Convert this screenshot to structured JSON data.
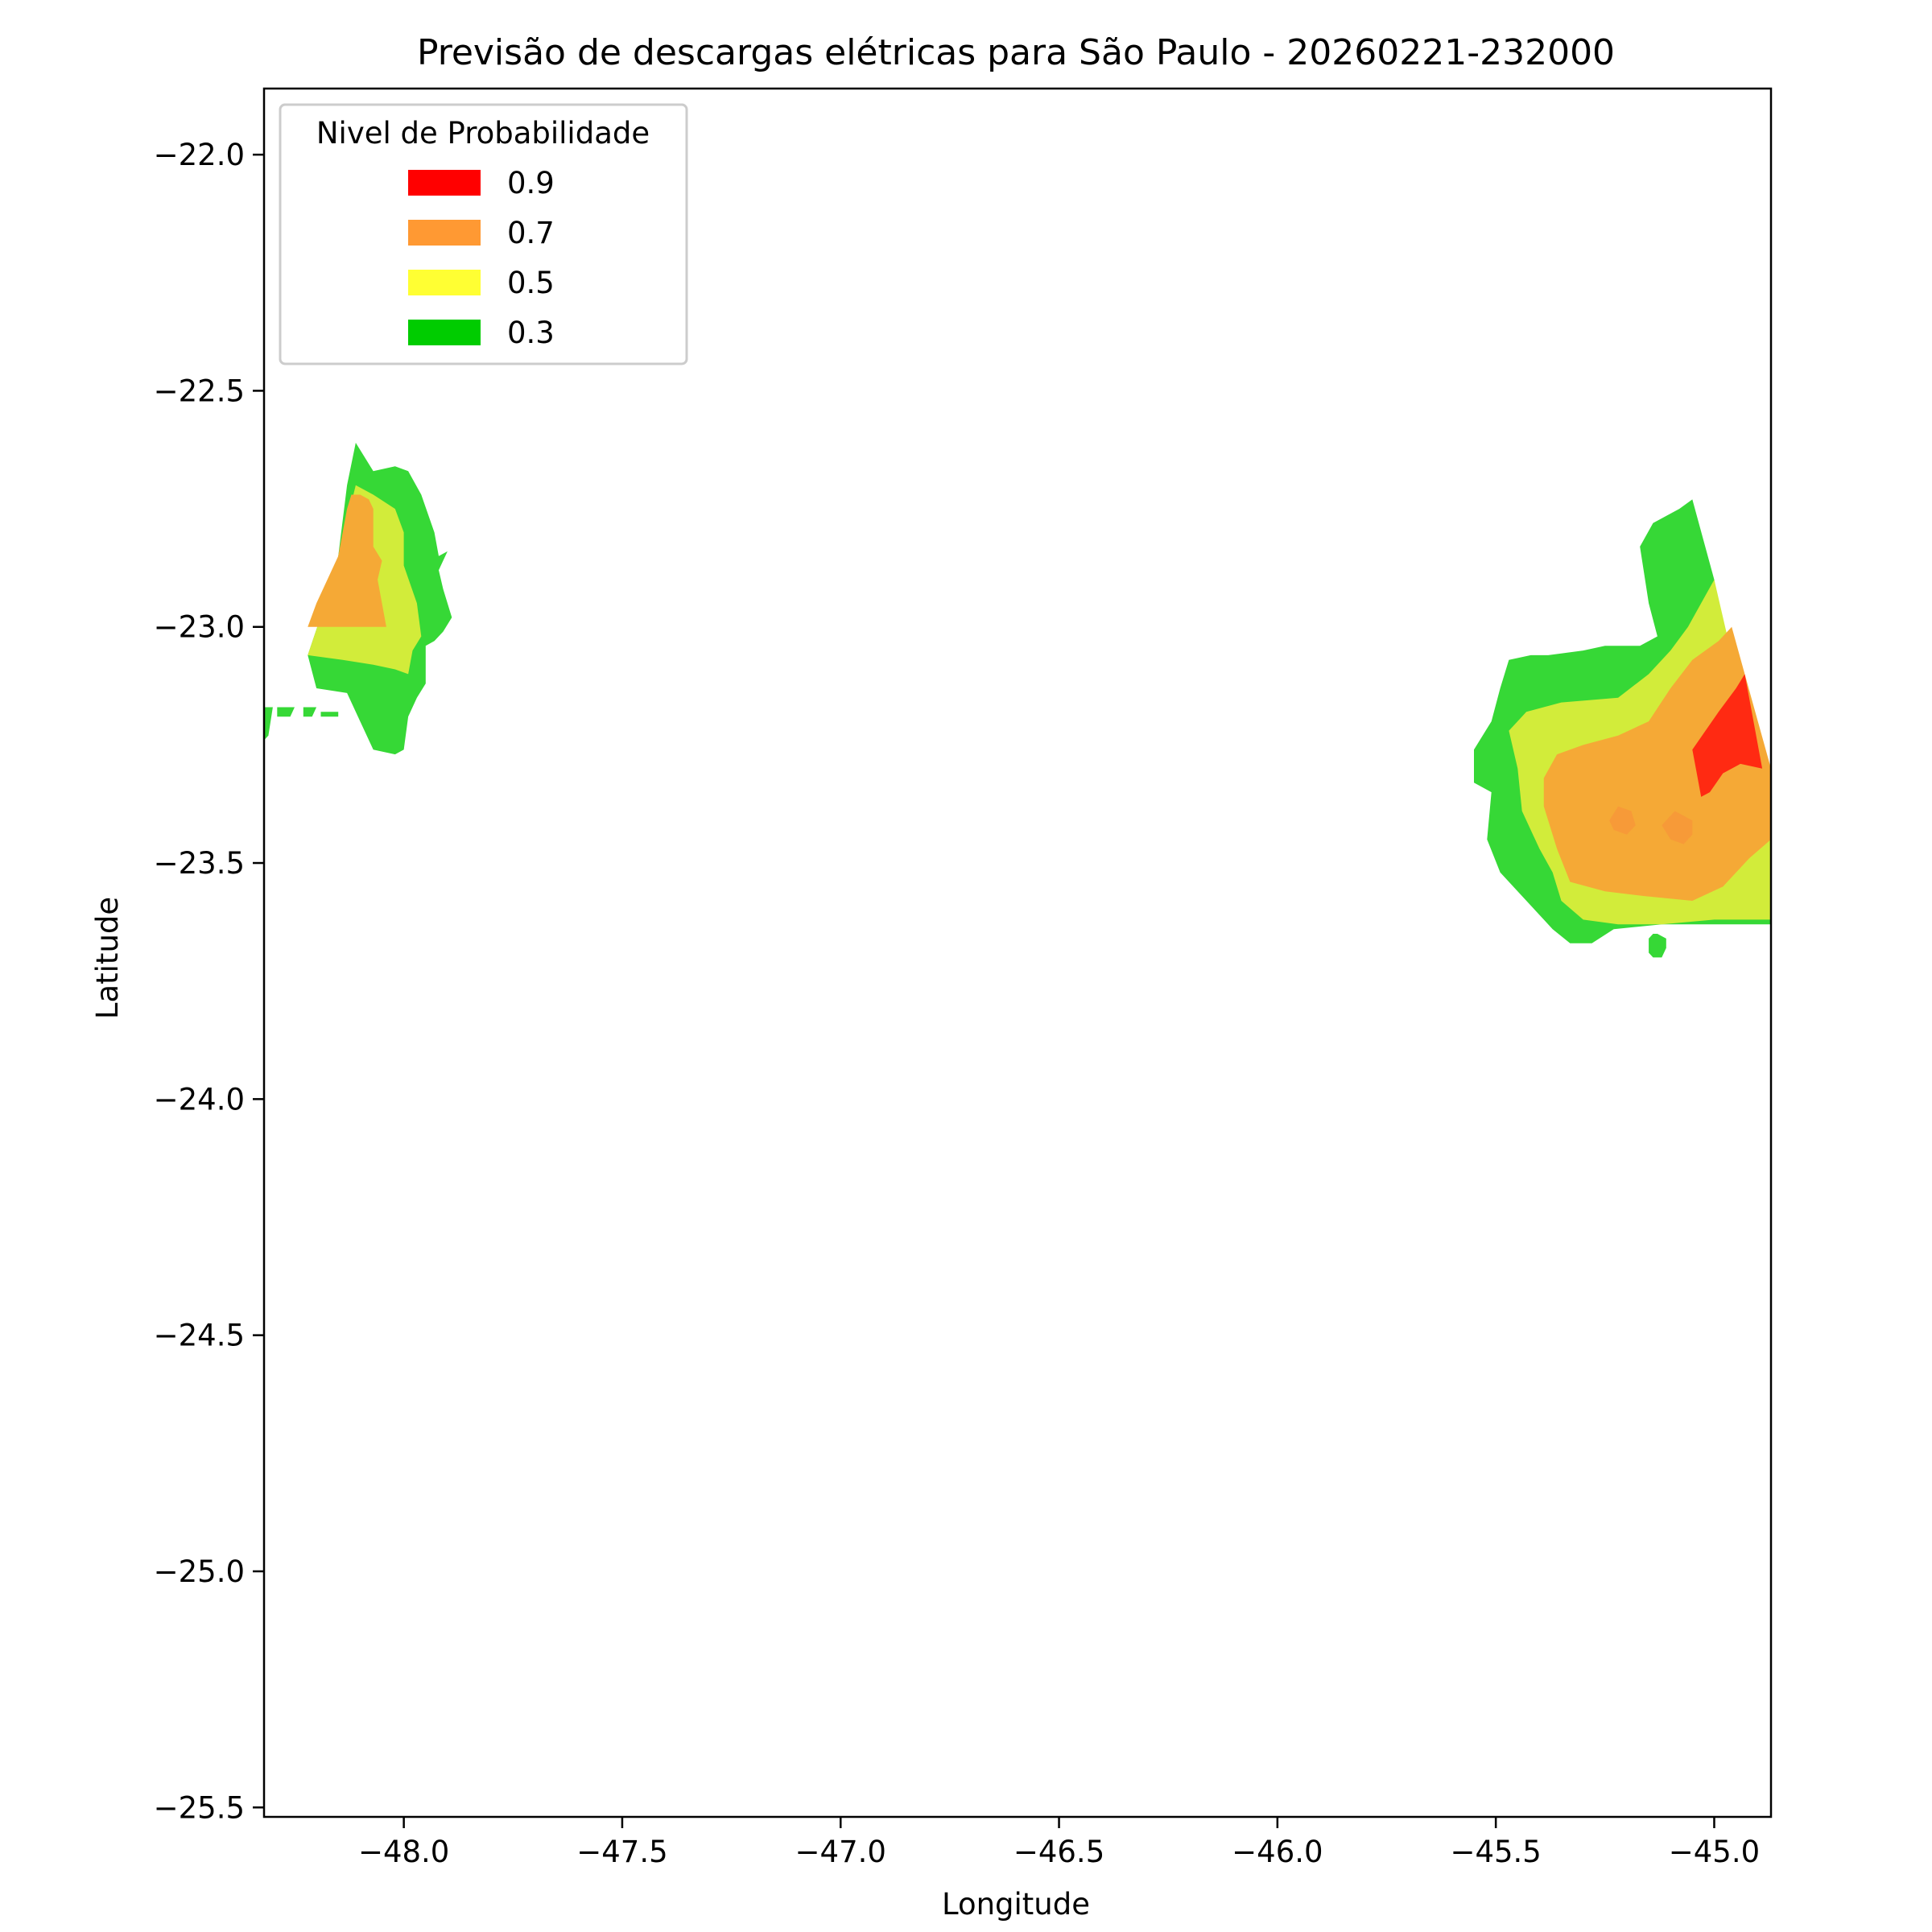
{
  "chart_data": {
    "type": "heatmap",
    "title": "Previsão de descargas elétricas para São Paulo - 20260221-232000",
    "xlabel": "Longitude",
    "ylabel": "Latitude",
    "xlim": [
      -48.32,
      -44.87
    ],
    "ylim": [
      -25.52,
      -21.86
    ],
    "x_ticks": [
      -48.0,
      -47.5,
      -47.0,
      -46.5,
      -46.0,
      -45.5,
      -45.0
    ],
    "x_tick_labels": [
      "−48.0",
      "−47.5",
      "−47.0",
      "−46.5",
      "−46.0",
      "−45.5",
      "−45.0"
    ],
    "y_ticks": [
      -22.0,
      -22.5,
      -23.0,
      -23.5,
      -24.0,
      -24.5,
      -25.0,
      -25.5
    ],
    "y_tick_labels": [
      "−22.0",
      "−22.5",
      "−23.0",
      "−23.5",
      "−24.0",
      "−24.5",
      "−25.0",
      "−25.5"
    ],
    "grid": false,
    "legend": {
      "title": "Nivel de Probabilidade",
      "placement": "top-left",
      "entries": [
        {
          "label": "0.9",
          "color": "#ff0000"
        },
        {
          "label": "0.7",
          "color": "#ff9933"
        },
        {
          "label": "0.5",
          "color": "#ffff33"
        },
        {
          "label": "0.3",
          "color": "#00cc00"
        }
      ]
    },
    "level_colors": {
      "0.3": "#36d836",
      "0.5": "#d2ec3a",
      "0.7": "#f5a936",
      "0.9": "#ff2a12",
      "0.7-spot": "#f79a38"
    },
    "regions": [
      {
        "level": "0.3",
        "polygon": [
          [
            -48.11,
            -22.61
          ],
          [
            -48.07,
            -22.67
          ],
          [
            -48.02,
            -22.66
          ],
          [
            -47.99,
            -22.67
          ],
          [
            -47.96,
            -22.72
          ],
          [
            -47.93,
            -22.8
          ],
          [
            -47.92,
            -22.85
          ],
          [
            -47.9,
            -22.84
          ],
          [
            -47.92,
            -22.88
          ],
          [
            -47.91,
            -22.92
          ],
          [
            -47.89,
            -22.98
          ],
          [
            -47.91,
            -23.01
          ],
          [
            -47.93,
            -23.03
          ],
          [
            -47.95,
            -23.04
          ],
          [
            -47.95,
            -23.12
          ],
          [
            -47.97,
            -23.15
          ],
          [
            -47.99,
            -23.19
          ],
          [
            -48.0,
            -23.26
          ],
          [
            -48.02,
            -23.27
          ],
          [
            -48.07,
            -23.26
          ],
          [
            -48.1,
            -23.2
          ],
          [
            -48.13,
            -23.14
          ],
          [
            -48.2,
            -23.13
          ],
          [
            -48.22,
            -23.06
          ],
          [
            -48.18,
            -22.95
          ],
          [
            -48.15,
            -22.85
          ],
          [
            -48.13,
            -22.7
          ]
        ]
      },
      {
        "level": "0.3",
        "polygon": [
          [
            -48.32,
            -23.17
          ],
          [
            -48.3,
            -23.17
          ],
          [
            -48.31,
            -23.23
          ],
          [
            -48.32,
            -23.24
          ]
        ]
      },
      {
        "level": "0.3",
        "polygon": [
          [
            -48.29,
            -23.17
          ],
          [
            -48.25,
            -23.17
          ],
          [
            -48.26,
            -23.19
          ],
          [
            -48.29,
            -23.19
          ]
        ]
      },
      {
        "level": "0.3",
        "polygon": [
          [
            -48.23,
            -23.17
          ],
          [
            -48.2,
            -23.17
          ],
          [
            -48.21,
            -23.19
          ],
          [
            -48.23,
            -23.19
          ]
        ]
      },
      {
        "level": "0.3",
        "polygon": [
          [
            -48.19,
            -23.18
          ],
          [
            -48.15,
            -23.18
          ],
          [
            -48.15,
            -23.19
          ],
          [
            -48.19,
            -23.19
          ]
        ]
      },
      {
        "level": "0.5",
        "polygon": [
          [
            -48.11,
            -22.7
          ],
          [
            -48.07,
            -22.72
          ],
          [
            -48.02,
            -22.75
          ],
          [
            -48.0,
            -22.8
          ],
          [
            -48.0,
            -22.87
          ],
          [
            -47.97,
            -22.95
          ],
          [
            -47.96,
            -23.02
          ],
          [
            -47.98,
            -23.05
          ],
          [
            -47.99,
            -23.1
          ],
          [
            -48.02,
            -23.09
          ],
          [
            -48.07,
            -23.08
          ],
          [
            -48.14,
            -23.07
          ],
          [
            -48.22,
            -23.06
          ],
          [
            -48.18,
            -22.95
          ],
          [
            -48.15,
            -22.85
          ]
        ]
      },
      {
        "level": "0.7",
        "polygon": [
          [
            -48.12,
            -22.72
          ],
          [
            -48.1,
            -22.72
          ],
          [
            -48.08,
            -22.73
          ],
          [
            -48.07,
            -22.75
          ],
          [
            -48.07,
            -22.83
          ],
          [
            -48.05,
            -22.86
          ],
          [
            -48.06,
            -22.9
          ],
          [
            -48.05,
            -22.95
          ],
          [
            -48.04,
            -23.0
          ],
          [
            -48.1,
            -23.0
          ],
          [
            -48.15,
            -23.0
          ],
          [
            -48.22,
            -23.0
          ],
          [
            -48.2,
            -22.95
          ],
          [
            -48.15,
            -22.85
          ],
          [
            -48.13,
            -22.75
          ]
        ]
      },
      {
        "level": "0.3",
        "polygon": [
          [
            -45.05,
            -22.73
          ],
          [
            -45.08,
            -22.75
          ],
          [
            -45.14,
            -22.78
          ],
          [
            -45.17,
            -22.83
          ],
          [
            -45.15,
            -22.95
          ],
          [
            -45.13,
            -23.02
          ],
          [
            -45.17,
            -23.04
          ],
          [
            -45.25,
            -23.04
          ],
          [
            -45.3,
            -23.05
          ],
          [
            -45.38,
            -23.06
          ],
          [
            -45.42,
            -23.06
          ],
          [
            -45.47,
            -23.07
          ],
          [
            -45.49,
            -23.13
          ],
          [
            -45.51,
            -23.2
          ],
          [
            -45.55,
            -23.26
          ],
          [
            -45.55,
            -23.33
          ],
          [
            -45.51,
            -23.35
          ],
          [
            -45.52,
            -23.45
          ],
          [
            -45.49,
            -23.52
          ],
          [
            -45.45,
            -23.56
          ],
          [
            -45.41,
            -23.6
          ],
          [
            -45.37,
            -23.64
          ],
          [
            -45.33,
            -23.67
          ],
          [
            -45.28,
            -23.67
          ],
          [
            -45.23,
            -23.64
          ],
          [
            -45.12,
            -23.63
          ],
          [
            -45.0,
            -23.63
          ],
          [
            -44.87,
            -23.63
          ],
          [
            -44.87,
            -23.3
          ],
          [
            -44.92,
            -23.2
          ],
          [
            -44.97,
            -23.05
          ],
          [
            -45.0,
            -22.9
          ]
        ]
      },
      {
        "level": "0.3",
        "polygon": [
          [
            -45.14,
            -23.65
          ],
          [
            -45.13,
            -23.65
          ],
          [
            -45.11,
            -23.66
          ],
          [
            -45.11,
            -23.68
          ],
          [
            -45.12,
            -23.7
          ],
          [
            -45.14,
            -23.7
          ],
          [
            -45.15,
            -23.69
          ],
          [
            -45.15,
            -23.66
          ]
        ]
      },
      {
        "level": "0.5",
        "polygon": [
          [
            -45.0,
            -22.9
          ],
          [
            -45.03,
            -22.95
          ],
          [
            -45.06,
            -23.0
          ],
          [
            -45.1,
            -23.05
          ],
          [
            -45.15,
            -23.1
          ],
          [
            -45.22,
            -23.15
          ],
          [
            -45.35,
            -23.16
          ],
          [
            -45.43,
            -23.18
          ],
          [
            -45.47,
            -23.22
          ],
          [
            -45.45,
            -23.3
          ],
          [
            -45.44,
            -23.39
          ],
          [
            -45.4,
            -23.47
          ],
          [
            -45.37,
            -23.52
          ],
          [
            -45.35,
            -23.58
          ],
          [
            -45.3,
            -23.62
          ],
          [
            -45.22,
            -23.63
          ],
          [
            -45.12,
            -23.63
          ],
          [
            -45.0,
            -23.62
          ],
          [
            -44.87,
            -23.62
          ],
          [
            -44.87,
            -23.4
          ],
          [
            -44.9,
            -23.3
          ],
          [
            -44.95,
            -23.1
          ]
        ]
      },
      {
        "level": "0.7",
        "polygon": [
          [
            -44.96,
            -23.0
          ],
          [
            -44.99,
            -23.03
          ],
          [
            -45.05,
            -23.07
          ],
          [
            -45.1,
            -23.13
          ],
          [
            -45.15,
            -23.2
          ],
          [
            -45.22,
            -23.23
          ],
          [
            -45.3,
            -23.25
          ],
          [
            -45.36,
            -23.27
          ],
          [
            -45.39,
            -23.32
          ],
          [
            -45.39,
            -23.38
          ],
          [
            -45.36,
            -23.47
          ],
          [
            -45.33,
            -23.54
          ],
          [
            -45.25,
            -23.56
          ],
          [
            -45.16,
            -23.57
          ],
          [
            -45.05,
            -23.58
          ],
          [
            -44.98,
            -23.55
          ],
          [
            -44.92,
            -23.49
          ],
          [
            -44.87,
            -23.45
          ],
          [
            -44.87,
            -23.3
          ],
          [
            -44.9,
            -23.2
          ],
          [
            -44.93,
            -23.1
          ]
        ]
      },
      {
        "level": "0.7-spot",
        "polygon": [
          [
            -45.22,
            -23.38
          ],
          [
            -45.19,
            -23.39
          ],
          [
            -45.18,
            -23.42
          ],
          [
            -45.2,
            -23.44
          ],
          [
            -45.23,
            -23.43
          ],
          [
            -45.24,
            -23.41
          ]
        ]
      },
      {
        "level": "0.7-spot",
        "polygon": [
          [
            -45.09,
            -23.39
          ],
          [
            -45.12,
            -23.42
          ],
          [
            -45.1,
            -23.45
          ],
          [
            -45.07,
            -23.46
          ],
          [
            -45.05,
            -23.44
          ],
          [
            -45.05,
            -23.41
          ]
        ]
      },
      {
        "level": "0.9",
        "polygon": [
          [
            -44.93,
            -23.1
          ],
          [
            -44.95,
            -23.13
          ],
          [
            -44.99,
            -23.18
          ],
          [
            -45.02,
            -23.22
          ],
          [
            -45.05,
            -23.26
          ],
          [
            -45.04,
            -23.31
          ],
          [
            -45.03,
            -23.36
          ],
          [
            -45.01,
            -23.35
          ],
          [
            -44.98,
            -23.31
          ],
          [
            -44.94,
            -23.29
          ],
          [
            -44.89,
            -23.3
          ],
          [
            -44.91,
            -23.2
          ]
        ]
      }
    ]
  }
}
